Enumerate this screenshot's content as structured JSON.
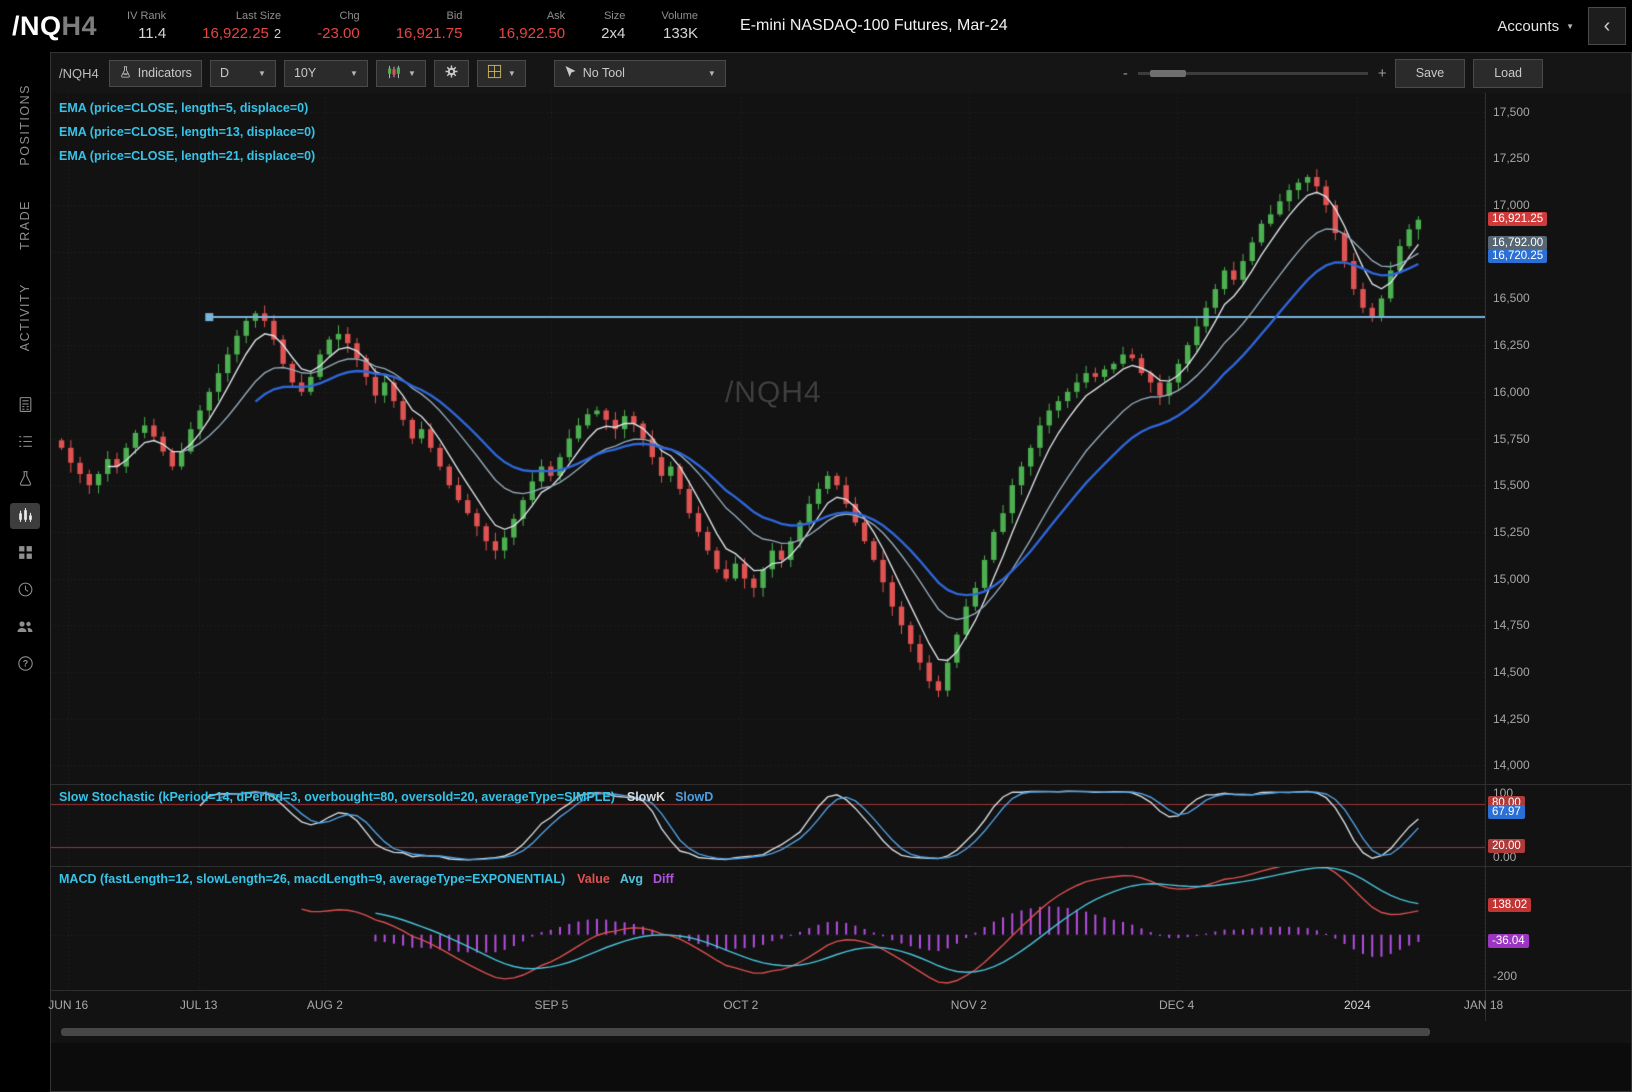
{
  "header": {
    "symbol": "/NQ",
    "symbol_suffix": "H4",
    "fields": [
      {
        "label": "IV Rank",
        "value": "11.4",
        "tone": "plain"
      },
      {
        "label": "Last Size",
        "value": "16,922.25",
        "extra": "2",
        "tone": "red"
      },
      {
        "label": "Chg",
        "value": "-23.00",
        "tone": "red"
      },
      {
        "label": "Bid",
        "value": "16,921.75",
        "tone": "red"
      },
      {
        "label": "Ask",
        "value": "16,922.50",
        "tone": "red"
      },
      {
        "label": "Size",
        "value": "2x4",
        "tone": "plain"
      },
      {
        "label": "Volume",
        "value": "133K",
        "tone": "plain"
      }
    ],
    "title": "E-mini NASDAQ-100 Futures, Mar-24",
    "accounts_label": "Accounts"
  },
  "sidebar": {
    "tabs": [
      "POSITIONS",
      "TRADE",
      "ACTIVITY"
    ],
    "icons": [
      "calculator-icon",
      "ledger-icon",
      "flask-icon",
      "chart-icon",
      "apps-icon",
      "clock-icon",
      "users-icon",
      "help-icon"
    ],
    "active_icon": "chart-icon"
  },
  "toolbar": {
    "symbol": "/NQH4",
    "indicators_label": "Indicators",
    "timeframe": "D",
    "range": "10Y",
    "tool_label": "No Tool",
    "zoom_out_label": "-",
    "zoom_in_label": "+",
    "save_label": "Save",
    "load_label": "Load"
  },
  "studies": {
    "ema_labels": [
      "EMA (price=CLOSE, length=5, displace=0)",
      "EMA (price=CLOSE, length=13, displace=0)",
      "EMA (price=CLOSE, length=21, displace=0)"
    ],
    "stoch_label": "Slow Stochastic (kPeriod=14, dPeriod=3, overbought=80, oversold=20, averageType=SIMPLE)",
    "stoch_legend": [
      {
        "label": "SlowK",
        "color": "#d3dade"
      },
      {
        "label": "SlowD",
        "color": "#4f9fe0"
      }
    ],
    "macd_label": "MACD (fastLength=12, slowLength=26, macdLength=9, averageType=EXPONENTIAL)",
    "macd_legend": [
      {
        "label": "Value",
        "color": "#e05252"
      },
      {
        "label": "Avg",
        "color": "#53c2d9"
      },
      {
        "label": "Diff",
        "color": "#b052e0"
      }
    ]
  },
  "watermark": "/NQH4",
  "colors": {
    "up": "#4caf50",
    "down": "#e05353",
    "ema5": "#d9dfe4",
    "ema13": "#93a8b8",
    "ema21": "#2e66d9",
    "hline": "#7ab5dc",
    "grid": "#262626",
    "stoch_k": "#d3dade",
    "stoch_d": "#4f9fe0",
    "stoch_band": "#9e3535",
    "macd_value": "#d94f4f",
    "macd_avg": "#49c0d8",
    "macd_diff": "#b44fe0"
  },
  "chart_data": {
    "type": "candlestick",
    "symbol": "/NQH4",
    "timeframe": "D",
    "range": "10Y",
    "last_price": 16921.25,
    "price_axis": {
      "min": 13900,
      "max": 17600,
      "tick_step": 250,
      "ticks": [
        17500,
        17250,
        17000,
        16750,
        16500,
        16250,
        16000,
        15750,
        15500,
        15250,
        15000,
        14750,
        14500,
        14250,
        14000
      ]
    },
    "time_axis": {
      "labels": [
        "JUN 16",
        "JUL 13",
        "AUG 2",
        "SEP 5",
        "OCT 2",
        "NOV 2",
        "DEC 4",
        "2024",
        "JAN 18"
      ],
      "fractions": [
        0.012,
        0.103,
        0.191,
        0.349,
        0.481,
        0.64,
        0.785,
        0.911,
        0.999
      ],
      "strong": [
        false,
        false,
        false,
        false,
        false,
        false,
        false,
        true,
        false
      ]
    },
    "closes": [
      15700,
      15620,
      15560,
      15500,
      15560,
      15640,
      15600,
      15700,
      15780,
      15820,
      15760,
      15680,
      15600,
      15680,
      15800,
      15900,
      16000,
      16100,
      16200,
      16300,
      16380,
      16420,
      16380,
      16280,
      16150,
      16050,
      16000,
      16080,
      16200,
      16280,
      16310,
      16260,
      16180,
      16080,
      15980,
      16050,
      15950,
      15850,
      15750,
      15800,
      15700,
      15600,
      15500,
      15420,
      15350,
      15280,
      15200,
      15150,
      15220,
      15320,
      15420,
      15520,
      15600,
      15550,
      15650,
      15750,
      15820,
      15880,
      15900,
      15850,
      15800,
      15870,
      15830,
      15750,
      15650,
      15550,
      15600,
      15480,
      15350,
      15250,
      15150,
      15050,
      15000,
      15080,
      15000,
      14950,
      15050,
      15150,
      15100,
      15200,
      15300,
      15400,
      15480,
      15550,
      15500,
      15400,
      15300,
      15200,
      15100,
      14980,
      14850,
      14750,
      14650,
      14550,
      14450,
      14400,
      14550,
      14700,
      14850,
      14950,
      15100,
      15250,
      15350,
      15500,
      15600,
      15700,
      15820,
      15900,
      15950,
      16000,
      16050,
      16100,
      16080,
      16120,
      16150,
      16200,
      16180,
      16100,
      16050,
      15980,
      16050,
      16150,
      16250,
      16350,
      16450,
      16550,
      16650,
      16600,
      16700,
      16800,
      16900,
      16950,
      17020,
      17080,
      17120,
      17150,
      17100,
      17000,
      16850,
      16700,
      16550,
      16450,
      16400,
      16500,
      16650,
      16780,
      16870,
      16921.25
    ],
    "overlays": [
      {
        "type": "EMA",
        "length": 5
      },
      {
        "type": "EMA",
        "length": 13
      },
      {
        "type": "EMA",
        "length": 21
      }
    ],
    "horizontal_line": {
      "price": 16400,
      "start_index": 16
    },
    "price_axis_bubbles": [
      {
        "text": "16,921.25",
        "value": 16921.25,
        "bg": "#cf3a3a"
      },
      {
        "text": "16,792.00",
        "value": 16792,
        "bg": "#566672"
      },
      {
        "text": "16,720.25",
        "value": 16720.25,
        "bg": "#2a6fd6"
      }
    ],
    "stochastic": {
      "kPeriod": 14,
      "dPeriod": 3,
      "overbought": 80,
      "oversold": 20,
      "averageType": "SIMPLE",
      "axis_labels": [
        {
          "text": "100",
          "value": 100
        },
        {
          "text": "0.00",
          "value": 0
        }
      ],
      "bubbles": [
        {
          "text": "80.00",
          "value": 80,
          "bg": "#b03a3a"
        },
        {
          "text": "67.97",
          "value": 67.97,
          "bg": "#2a6fd6"
        },
        {
          "text": "20.00",
          "value": 20,
          "bg": "#b03a3a"
        }
      ]
    },
    "macd": {
      "fastLength": 12,
      "slowLength": 26,
      "macdLength": 9,
      "averageType": "EXPONENTIAL",
      "scale_min": -250,
      "scale_max": 310,
      "axis_labels": [
        {
          "text": "-200",
          "value": -200
        }
      ],
      "bubbles": [
        {
          "text": "138.02",
          "value": 138.02,
          "bg": "#c23535"
        },
        {
          "text": "-36.04",
          "value": -36.04,
          "bg": "#9b35c2"
        }
      ]
    }
  }
}
